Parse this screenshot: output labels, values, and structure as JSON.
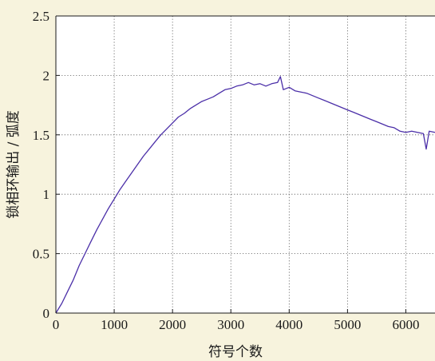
{
  "colors": {
    "background": "#f7f3dd",
    "plot_background": "#ffffff",
    "line": "#4b2fa8",
    "axis": "#1a1a1a",
    "grid": "#555555"
  },
  "chart_data": {
    "type": "line",
    "title": "",
    "xlabel": "符号个数",
    "ylabel": "锁相环输出 / 弧度",
    "xlim": [
      0,
      6500
    ],
    "ylim": [
      0,
      2.5
    ],
    "xticks": [
      0,
      1000,
      2000,
      3000,
      4000,
      5000,
      6000
    ],
    "xtick_labels": [
      "0",
      "1000",
      "2000",
      "3000",
      "4000",
      "5000",
      "6000"
    ],
    "yticks": [
      0,
      0.5,
      1,
      1.5,
      2,
      2.5
    ],
    "ytick_labels": [
      "0",
      "0.5",
      "1",
      "1.5",
      "2",
      "2.5"
    ],
    "grid": true,
    "grid_style": "dotted",
    "series": [
      {
        "x": [
          0,
          100,
          200,
          300,
          400,
          500,
          600,
          700,
          800,
          900,
          1000,
          1100,
          1200,
          1300,
          1400,
          1500,
          1600,
          1700,
          1800,
          1900,
          2000,
          2100,
          2200,
          2300,
          2400,
          2500,
          2600,
          2700,
          2800,
          2900,
          3000,
          3100,
          3200,
          3300,
          3400,
          3500,
          3600,
          3700,
          3800,
          3850,
          3900,
          4000,
          4100,
          4200,
          4300,
          4400,
          4500,
          4600,
          4700,
          4800,
          4900,
          5000,
          5100,
          5200,
          5300,
          5400,
          5500,
          5600,
          5700,
          5800,
          5900,
          6000,
          6100,
          6200,
          6300,
          6350,
          6400,
          6500
        ],
        "y": [
          0.0,
          0.08,
          0.18,
          0.28,
          0.4,
          0.5,
          0.6,
          0.7,
          0.79,
          0.88,
          0.96,
          1.04,
          1.11,
          1.18,
          1.25,
          1.32,
          1.38,
          1.44,
          1.5,
          1.55,
          1.6,
          1.65,
          1.68,
          1.72,
          1.75,
          1.78,
          1.8,
          1.82,
          1.85,
          1.88,
          1.89,
          1.91,
          1.92,
          1.94,
          1.92,
          1.93,
          1.91,
          1.93,
          1.94,
          1.99,
          1.88,
          1.9,
          1.87,
          1.86,
          1.85,
          1.83,
          1.81,
          1.79,
          1.77,
          1.75,
          1.73,
          1.71,
          1.69,
          1.67,
          1.65,
          1.63,
          1.61,
          1.59,
          1.57,
          1.56,
          1.53,
          1.52,
          1.53,
          1.52,
          1.51,
          1.38,
          1.53,
          1.52
        ]
      }
    ]
  }
}
